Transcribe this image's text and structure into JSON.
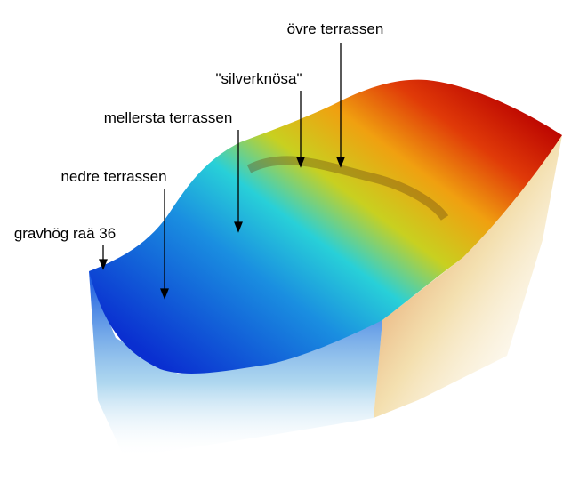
{
  "labels": [
    "övre terrassen",
    "\"silverknösa\"",
    "mellersta terrassen",
    "nedre terrassen",
    "gravhög raä 36"
  ]
}
